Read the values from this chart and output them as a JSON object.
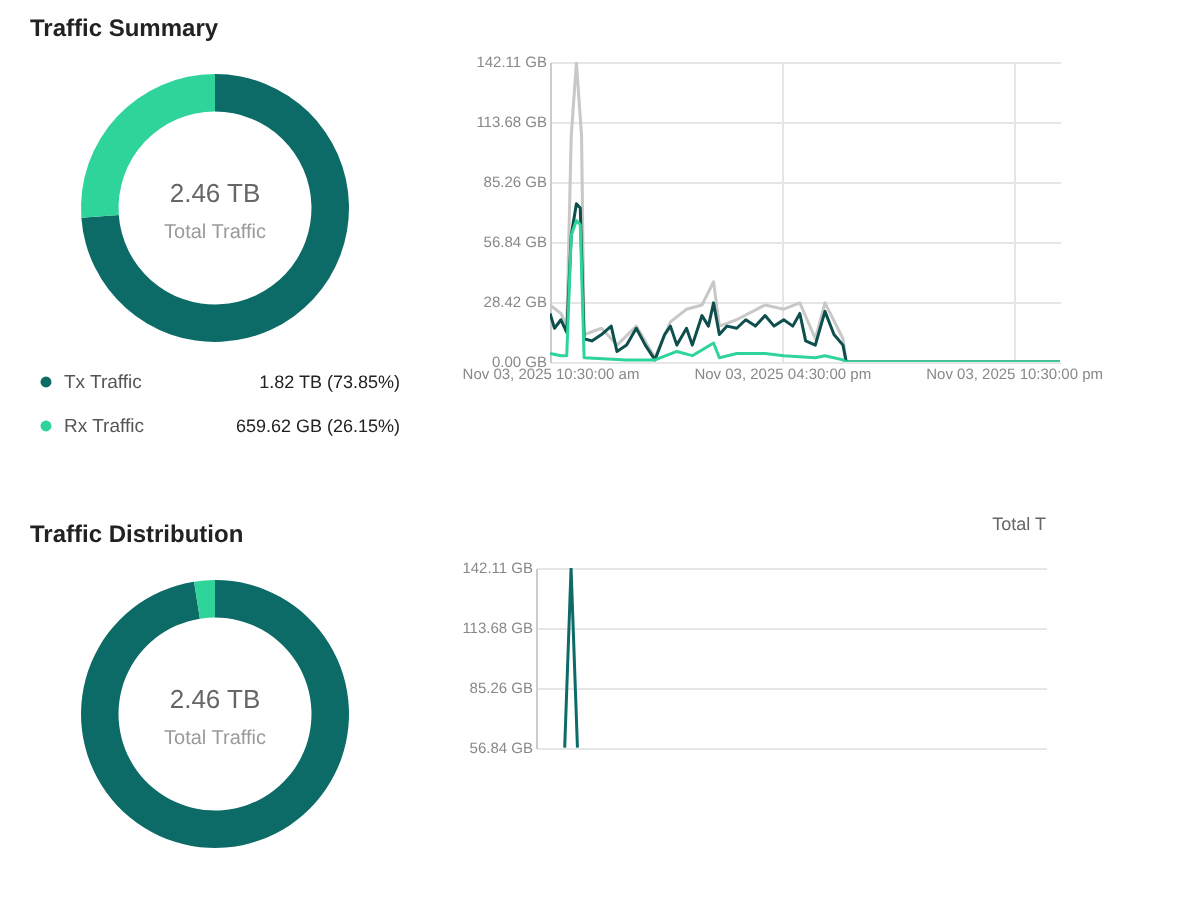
{
  "chart_data": [
    {
      "type": "donut",
      "title": "Traffic Summary",
      "categories": [
        "Tx Traffic",
        "Rx Traffic"
      ],
      "values": [
        73.85,
        26.15
      ],
      "colors": [
        "#0c6b66",
        "#2fd49b"
      ],
      "value_labels": [
        "1.82 TB (73.85%)",
        "659.62 GB (26.15%)"
      ],
      "annotations": [
        "2.46 TB",
        "Total Traffic"
      ],
      "legend": "bottom"
    },
    {
      "type": "line",
      "xlim": [
        "2025-11-03T10:30",
        "2025-11-03T23:42"
      ],
      "xticks": [
        {
          "value": "2025-11-03T10:30",
          "label": "Nov 03, 2025 10:30:00 am"
        },
        {
          "value": "2025-11-03T16:30",
          "label": "Nov 03, 2025 04:30:00 pm"
        },
        {
          "value": "2025-11-03T22:30",
          "label": "Nov 03, 2025 10:30:00 pm"
        }
      ],
      "ylim": [
        0,
        142.11
      ],
      "yticks": [
        {
          "value": 0,
          "label": "0.00 GB"
        },
        {
          "value": 28.42,
          "label": "28.42 GB"
        },
        {
          "value": 56.84,
          "label": "56.84 GB"
        },
        {
          "value": 85.26,
          "label": "85.26 GB"
        },
        {
          "value": 113.68,
          "label": "113.68 GB"
        },
        {
          "value": 142.11,
          "label": "142.11 GB"
        }
      ],
      "grid": true,
      "series": [
        {
          "color": "#c8c8c8",
          "x": [
            "2025-11-03T10:30",
            "2025-11-03T10:47",
            "2025-11-03T10:56",
            "2025-11-03T11:03",
            "2025-11-03T11:11",
            "2025-11-03T11:19",
            "2025-11-03T11:23",
            "2025-11-03T11:50",
            "2025-11-03T12:14",
            "2025-11-03T12:44",
            "2025-11-03T13:13",
            "2025-11-03T13:37",
            "2025-11-03T14:02",
            "2025-11-03T14:26",
            "2025-11-03T14:44",
            "2025-11-03T14:53",
            "2025-11-03T15:20",
            "2025-11-03T16:04",
            "2025-11-03T16:33",
            "2025-11-03T16:58",
            "2025-11-03T17:22",
            "2025-11-03T17:37",
            "2025-11-03T18:05",
            "2025-11-03T18:10",
            "2025-11-03T23:42"
          ],
          "values": [
            27,
            23,
            17,
            107,
            142,
            107,
            13,
            16,
            8,
            17,
            2,
            19,
            25,
            27,
            38,
            17,
            20,
            27,
            25,
            28,
            11,
            28,
            11,
            0,
            0
          ]
        },
        {
          "color": "#0c4f4c",
          "x": [
            "2025-11-03T10:30",
            "2025-11-03T10:37",
            "2025-11-03T10:47",
            "2025-11-03T10:56",
            "2025-11-03T11:03",
            "2025-11-03T11:11",
            "2025-11-03T11:17",
            "2025-11-03T11:23",
            "2025-11-03T11:35",
            "2025-11-03T11:50",
            "2025-11-03T12:05",
            "2025-11-03T12:14",
            "2025-11-03T12:29",
            "2025-11-03T12:44",
            "2025-11-03T12:58",
            "2025-11-03T13:13",
            "2025-11-03T13:28",
            "2025-11-03T13:37",
            "2025-11-03T13:47",
            "2025-11-03T14:02",
            "2025-11-03T14:11",
            "2025-11-03T14:26",
            "2025-11-03T14:36",
            "2025-11-03T14:44",
            "2025-11-03T14:53",
            "2025-11-03T15:05",
            "2025-11-03T15:20",
            "2025-11-03T15:34",
            "2025-11-03T15:49",
            "2025-11-03T16:04",
            "2025-11-03T16:18",
            "2025-11-03T16:33",
            "2025-11-03T16:47",
            "2025-11-03T16:58",
            "2025-11-03T17:07",
            "2025-11-03T17:22",
            "2025-11-03T17:37",
            "2025-11-03T17:51",
            "2025-11-03T18:05",
            "2025-11-03T18:10",
            "2025-11-03T18:59",
            "2025-11-03T23:42"
          ],
          "values": [
            23,
            16,
            20,
            14,
            60,
            75,
            73,
            11,
            10,
            13,
            17,
            5,
            8,
            16,
            8,
            1,
            13,
            17,
            8,
            16,
            8,
            22,
            17,
            28,
            13,
            17,
            16,
            20,
            17,
            22,
            17,
            20,
            17,
            23,
            10,
            8,
            24,
            13,
            8,
            0,
            0,
            0
          ]
        },
        {
          "color": "#2fd49b",
          "x": [
            "2025-11-03T10:30",
            "2025-11-03T10:47",
            "2025-11-03T10:56",
            "2025-11-03T11:03",
            "2025-11-03T11:11",
            "2025-11-03T11:17",
            "2025-11-03T11:23",
            "2025-11-03T12:29",
            "2025-11-03T13:13",
            "2025-11-03T13:47",
            "2025-11-03T14:11",
            "2025-11-03T14:44",
            "2025-11-03T14:53",
            "2025-11-03T15:20",
            "2025-11-03T16:04",
            "2025-11-03T16:33",
            "2025-11-03T17:22",
            "2025-11-03T17:37",
            "2025-11-03T18:05",
            "2025-11-03T18:10",
            "2025-11-03T23:42"
          ],
          "values": [
            4,
            3,
            3,
            60,
            67,
            65,
            2,
            1,
            1,
            5,
            3,
            9,
            2,
            4,
            4,
            3,
            2,
            3,
            1,
            0,
            0
          ]
        }
      ]
    },
    {
      "type": "donut",
      "title": "Traffic Distribution",
      "categories": [
        null,
        null
      ],
      "values": [
        97.5,
        2.5
      ],
      "colors": [
        "#0c6b66",
        "#2fd49b"
      ],
      "annotations": [
        "2.46 TB",
        "Total Traffic"
      ]
    },
    {
      "type": "line",
      "categories": [
        null,
        null,
        null,
        null,
        null,
        null,
        null,
        null,
        null,
        null,
        null,
        null,
        null,
        null,
        null,
        null,
        null,
        null,
        null,
        null,
        null,
        null,
        null,
        null,
        null,
        null,
        null,
        null,
        null,
        null,
        null,
        null,
        null,
        null,
        null,
        null,
        null,
        null,
        null,
        null,
        null,
        null,
        null,
        null,
        null,
        null,
        null,
        null,
        null,
        null,
        null,
        null,
        null,
        null,
        null,
        null,
        null,
        null,
        null,
        null,
        null,
        null,
        null,
        null,
        null,
        null,
        null,
        null,
        null,
        null,
        null,
        null,
        null,
        null,
        null,
        null,
        null,
        null,
        null,
        null
      ],
      "ylim": [
        56.84,
        142.11
      ],
      "yticks": [
        {
          "value": 56.84,
          "label": "56.84 GB"
        },
        {
          "value": 85.26,
          "label": "85.26 GB"
        },
        {
          "value": 113.68,
          "label": "113.68 GB"
        },
        {
          "value": 142.11,
          "label": "142.11 GB"
        }
      ],
      "tick_labels": "y",
      "grid": "y",
      "annotations": [
        "Total T"
      ],
      "series": [
        {
          "color": "#0c6b66",
          "values": [
            null,
            null,
            null,
            null,
            57,
            142,
            57,
            null,
            null,
            null,
            null,
            null,
            null,
            null,
            null,
            null,
            null,
            null,
            null,
            null,
            null,
            null,
            null,
            null,
            null,
            null,
            null,
            null,
            null,
            null,
            null,
            null,
            null,
            null,
            null,
            null,
            null,
            null,
            null,
            null,
            null,
            null,
            null,
            null,
            null,
            null,
            null,
            null,
            null,
            null,
            null,
            null,
            null,
            null,
            null,
            null,
            null,
            null,
            null,
            null,
            null,
            null,
            null,
            null,
            null,
            null,
            null,
            null,
            null,
            null,
            null,
            null,
            null,
            null,
            null,
            null,
            null,
            null,
            null,
            null
          ]
        }
      ]
    }
  ]
}
